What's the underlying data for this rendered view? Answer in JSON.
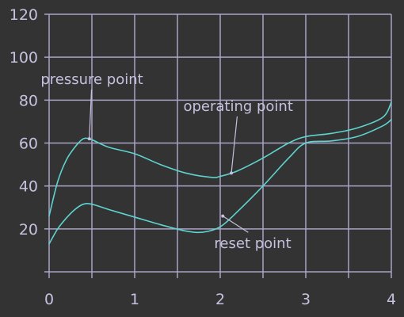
{
  "colors": {
    "background": "#333333",
    "axis": "#aaa3c6",
    "grid": "#aaa3c6",
    "text": "#c7c1df",
    "series": "#5ed3d0",
    "annotation_text": "#c7c1df"
  },
  "chart_data": {
    "type": "line",
    "title": "",
    "xlabel": "",
    "ylabel": "",
    "xlim": [
      0,
      4
    ],
    "ylim": [
      0,
      120
    ],
    "grid": true,
    "x_ticks": [
      0,
      1,
      2,
      3,
      4
    ],
    "x_tick_labels": [
      "0",
      "1",
      "2",
      "3",
      "4"
    ],
    "y_ticks": [
      20,
      40,
      60,
      80,
      100,
      120
    ],
    "y_tick_labels": [
      "20",
      "40",
      "60",
      "80",
      "100",
      "120"
    ],
    "minor_x_grid": [
      0.5,
      1.5,
      2.5,
      3.5
    ],
    "series": [
      {
        "points": [
          [
            0.0,
            26
          ],
          [
            0.1,
            42
          ],
          [
            0.2,
            52
          ],
          [
            0.3,
            58
          ],
          [
            0.4,
            62
          ],
          [
            0.5,
            61.5
          ],
          [
            0.7,
            58
          ],
          [
            1.0,
            55
          ],
          [
            1.3,
            50
          ],
          [
            1.6,
            46
          ],
          [
            1.9,
            44
          ],
          [
            2.0,
            44.5
          ],
          [
            2.2,
            47
          ],
          [
            2.5,
            53
          ],
          [
            2.8,
            60
          ],
          [
            3.0,
            63
          ],
          [
            3.3,
            64.5
          ],
          [
            3.6,
            67
          ],
          [
            3.9,
            72
          ],
          [
            4.0,
            79
          ]
        ]
      },
      {
        "points": [
          [
            0.0,
            13
          ],
          [
            0.1,
            20
          ],
          [
            0.2,
            25
          ],
          [
            0.3,
            29
          ],
          [
            0.4,
            31.5
          ],
          [
            0.5,
            31.5
          ],
          [
            0.7,
            29
          ],
          [
            1.0,
            25.5
          ],
          [
            1.3,
            22
          ],
          [
            1.6,
            19
          ],
          [
            1.8,
            18.5
          ],
          [
            2.0,
            21
          ],
          [
            2.2,
            28
          ],
          [
            2.5,
            40
          ],
          [
            2.8,
            53
          ],
          [
            3.0,
            60
          ],
          [
            3.3,
            61
          ],
          [
            3.6,
            63
          ],
          [
            3.9,
            68
          ],
          [
            4.0,
            71
          ]
        ]
      }
    ],
    "annotations": [
      {
        "text": "pressure point",
        "target": [
          0.47,
          62
        ],
        "label_anchor": [
          0.5,
          87.5
        ]
      },
      {
        "text": "operating point",
        "target": [
          2.13,
          46
        ],
        "label_anchor": [
          2.21,
          75
        ]
      },
      {
        "text": "reset point",
        "target": [
          2.03,
          26
        ],
        "label_anchor": [
          2.38,
          11
        ]
      }
    ]
  }
}
